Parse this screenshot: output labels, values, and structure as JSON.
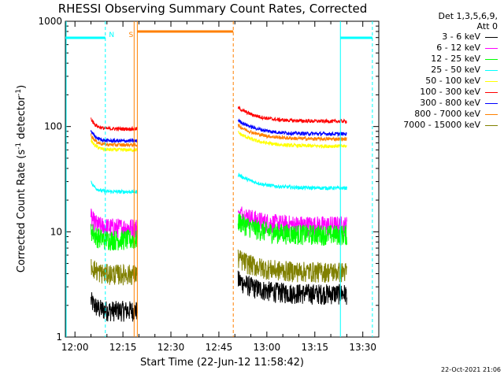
{
  "chart_data": {
    "type": "line",
    "title": "RHESSI Observing Summary Count Rates, Corrected",
    "xlabel": "Start Time (22-Jun-12 11:58:42)",
    "ylabel_main": "Corrected Count Rate (s",
    "ylabel_sup1": "-1",
    "ylabel_mid": " detector",
    "ylabel_sup2": "-1",
    "ylabel_end": ")",
    "yscale": "log",
    "ylim": [
      1,
      1000
    ],
    "y_tick_labels": [
      "1",
      "10",
      "100",
      "1000"
    ],
    "xlim_minutes": [
      -3,
      95
    ],
    "x_ticks": [
      {
        "min": 0,
        "label": "12:00"
      },
      {
        "min": 15,
        "label": "12:15"
      },
      {
        "min": 30,
        "label": "12:30"
      },
      {
        "min": 45,
        "label": "12:45"
      },
      {
        "min": 60,
        "label": "13:00"
      },
      {
        "min": 75,
        "label": "13:15"
      },
      {
        "min": 90,
        "label": "13:30"
      }
    ],
    "detector_label": "Det 1,3,5,6,9,",
    "attenuator_label": "Att 0",
    "intervals": [
      {
        "start": 5,
        "end": 19.5
      },
      {
        "start": 51,
        "end": 85
      }
    ],
    "series": [
      {
        "name": "3 - 6 keV",
        "color": "#000000",
        "level": [
          1.8,
          2.6
        ]
      },
      {
        "name": "6 - 12 keV",
        "color": "#ff00ff",
        "level": [
          11,
          11.5
        ]
      },
      {
        "name": "12 - 25 keV",
        "color": "#00ff00",
        "level": [
          8.5,
          9.5
        ]
      },
      {
        "name": "25 - 50 keV",
        "color": "#00ffff",
        "level": [
          24,
          26
        ]
      },
      {
        "name": "50 - 100 keV",
        "color": "#ffff00",
        "level": [
          60,
          65
        ]
      },
      {
        "name": "100 - 300 keV",
        "color": "#ff0000",
        "level": [
          95,
          112
        ]
      },
      {
        "name": "300 - 800 keV",
        "color": "#0000ff",
        "level": [
          73,
          85
        ]
      },
      {
        "name": "800 - 7000 keV",
        "color": "#ff8000",
        "level": [
          67,
          76
        ]
      },
      {
        "name": "7000 - 15000 keV",
        "color": "#808000",
        "level": [
          4,
          4.2
        ]
      }
    ],
    "markers": [
      {
        "label": "N",
        "color": "#00ffff",
        "style": "dashed",
        "min": 9.5
      },
      {
        "label": "S",
        "color": "#ff8000",
        "style": "solid",
        "min": 18.5
      }
    ],
    "night_color": "#00ffff",
    "saa_color": "#ff8000",
    "footer_timestamp": "22-Oct-2021 21:06"
  }
}
